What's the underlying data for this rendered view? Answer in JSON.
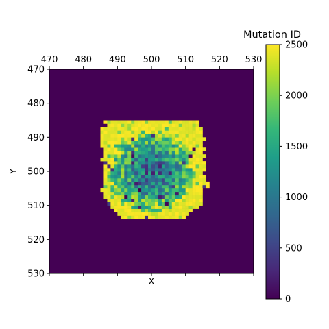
{
  "chart_data": {
    "type": "heatmap",
    "title": "",
    "xlabel": "X",
    "ylabel": "Y",
    "xlim": [
      470,
      530
    ],
    "ylim": [
      470,
      530
    ],
    "xticks": [
      "470",
      "480",
      "490",
      "500",
      "510",
      "520",
      "530"
    ],
    "yticks": [
      "470",
      "480",
      "490",
      "500",
      "510",
      "520",
      "530"
    ],
    "x_ticklabel_position": "top",
    "y_axis_inverted": true,
    "background_value": 0,
    "cell_size": 1,
    "colormap": "viridis",
    "colormap_stops": [
      "#440154",
      "#482878",
      "#3e4989",
      "#31688e",
      "#26828e",
      "#1f9e89",
      "#35b779",
      "#6ece58",
      "#b5de2b",
      "#fde725"
    ],
    "colorbar": {
      "label": "Mutation ID",
      "vmin": 0,
      "vmax": 2500,
      "ticks": [
        "0",
        "500",
        "1000",
        "1500",
        "2000",
        "2500"
      ],
      "position": "right"
    },
    "tumor_region": {
      "description_bounds": {
        "x": [
          485,
          515
        ],
        "y": [
          486,
          514
        ]
      },
      "cell_rows_approx": [
        {
          "y": 514,
          "x_range": [
            487,
            512
          ],
          "typical_value": 2450
        },
        {
          "y": 510,
          "x_range": [
            485,
            514
          ],
          "typical_value": 2100
        },
        {
          "y": 505,
          "x_range": [
            486,
            514
          ],
          "typical_value": 1600
        },
        {
          "y": 500,
          "x_range": [
            486,
            515
          ],
          "typical_value": 1300
        },
        {
          "y": 495,
          "x_range": [
            486,
            515
          ],
          "typical_value": 1500
        },
        {
          "y": 490,
          "x_range": [
            487,
            514
          ],
          "typical_value": 2000
        },
        {
          "y": 486,
          "x_range": [
            491,
            509
          ],
          "typical_value": 2450
        }
      ]
    }
  }
}
